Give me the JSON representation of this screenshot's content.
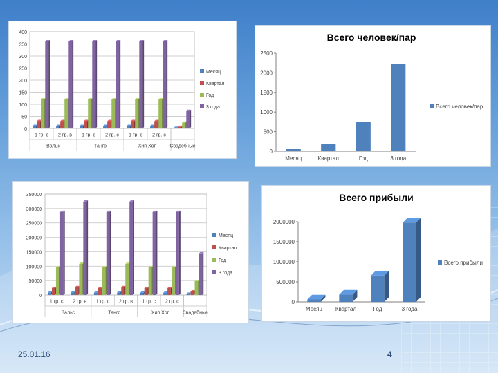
{
  "slide": {
    "date": "25.01.16",
    "page_number": "4"
  },
  "colors": {
    "month": "#4f81bd",
    "quarter": "#c0504d",
    "year": "#9bbb59",
    "three_years": "#8064a2",
    "single": "#4f81bd"
  },
  "legend_labels": [
    "Месяц",
    "Квартал",
    "Год",
    "3 года"
  ],
  "chart_data": [
    {
      "id": "people-by-group",
      "type": "bar",
      "title": "",
      "ylim": [
        0,
        400
      ],
      "yticks": [
        "0",
        "50",
        "100",
        "150",
        "200",
        "250",
        "300",
        "350",
        "400"
      ],
      "subcategories": [
        "1 гр. с",
        "2 гр. в",
        "1 гр. с",
        "2 гр. с",
        "1 гр. с",
        "2 гр. с",
        ""
      ],
      "groups": [
        {
          "label": "Вальс",
          "span": 2
        },
        {
          "label": "Танго",
          "span": 2
        },
        {
          "label": "Хип Хоп",
          "span": 2
        },
        {
          "label": "Свадебные",
          "span": 1
        }
      ],
      "series": [
        {
          "name": "Месяц",
          "values": [
            10,
            10,
            10,
            10,
            10,
            10,
            2
          ]
        },
        {
          "name": "Квартал",
          "values": [
            30,
            30,
            30,
            30,
            30,
            30,
            6
          ]
        },
        {
          "name": "Год",
          "values": [
            120,
            120,
            120,
            120,
            120,
            120,
            24
          ]
        },
        {
          "name": "3 года",
          "values": [
            360,
            360,
            360,
            360,
            360,
            360,
            72
          ]
        }
      ]
    },
    {
      "id": "total-people",
      "type": "bar",
      "title": "Всего человек/пар",
      "ylim": [
        0,
        2500
      ],
      "yticks": [
        "0",
        "500",
        "1000",
        "1500",
        "2000",
        "2500"
      ],
      "categories": [
        "Месяц",
        "Квартал",
        "Год",
        "3 года"
      ],
      "series": [
        {
          "name": "Всего человек/пар",
          "values": [
            62,
            186,
            744,
            2232
          ]
        }
      ]
    },
    {
      "id": "profit-by-group",
      "type": "bar",
      "title": "",
      "ylim": [
        0,
        350000
      ],
      "yticks": [
        "0",
        "50000",
        "100000",
        "150000",
        "200000",
        "250000",
        "300000",
        "350000"
      ],
      "subcategories": [
        "1 гр. с",
        "2 гр. в",
        "1 гр. с",
        "2 гр. в",
        "1 гр. с",
        "2 гр. с",
        ""
      ],
      "groups": [
        {
          "label": "Вальс",
          "span": 2
        },
        {
          "label": "Танго",
          "span": 2
        },
        {
          "label": "Хип Хоп",
          "span": 2
        },
        {
          "label": "Свадебные",
          "span": 1
        }
      ],
      "series": [
        {
          "name": "Месяц",
          "values": [
            8000,
            9000,
            8000,
            9000,
            8000,
            8000,
            4000
          ]
        },
        {
          "name": "Квартал",
          "values": [
            24000,
            27000,
            24000,
            27000,
            24000,
            24000,
            12000
          ]
        },
        {
          "name": "Год",
          "values": [
            96000,
            108000,
            96000,
            108000,
            96000,
            96000,
            48000
          ]
        },
        {
          "name": "3 года",
          "values": [
            288000,
            324000,
            288000,
            324000,
            288000,
            288000,
            144000
          ]
        }
      ]
    },
    {
      "id": "total-profit",
      "type": "bar",
      "title": "Всего прибыли",
      "ylim": [
        0,
        2000000
      ],
      "yticks": [
        "0",
        "500000",
        "1000000",
        "1500000",
        "2000000"
      ],
      "categories": [
        "Месяц",
        "Квартал",
        "Год",
        "3 года"
      ],
      "series": [
        {
          "name": "Всего прибыли",
          "values": [
            60000,
            180000,
            660000,
            1980000
          ]
        }
      ]
    }
  ]
}
